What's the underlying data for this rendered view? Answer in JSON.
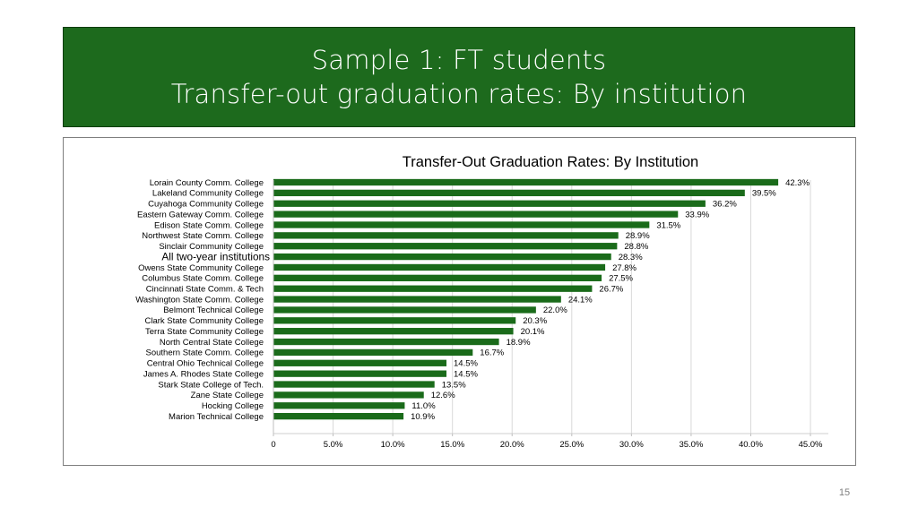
{
  "slide": {
    "title_line1": "Sample 1: FT students",
    "title_line2": "Transfer-out graduation rates: By institution",
    "page_number": "15"
  },
  "colors": {
    "title_band": "#1d6a1d",
    "bar": "#1a6b1a",
    "grid": "#d9d9d9"
  },
  "chart_data": {
    "type": "bar",
    "orientation": "horizontal",
    "title": "Transfer-Out Graduation Rates: By Institution",
    "categories": [
      "Lorain County Comm. College",
      "Lakeland Community College",
      "Cuyahoga Community College",
      "Eastern Gateway Comm. College",
      "Edison State Comm. College",
      "Northwest State Comm. College",
      "Sinclair Community College",
      "All two-year institutions",
      "Owens State Community College",
      "Columbus State Comm. College",
      "Cincinnati State Comm. & Tech",
      "Washington State Comm. College",
      "Belmont Technical College",
      "Clark State Community College",
      "Terra State Community College",
      "North Central State College",
      "Southern State Comm. College",
      "Central Ohio Technical College",
      "James A. Rhodes State College",
      "Stark State College of Tech.",
      "Zane State College",
      "Hocking College",
      "Marion Technical College"
    ],
    "values": [
      42.3,
      39.5,
      36.2,
      33.9,
      31.5,
      28.9,
      28.8,
      28.3,
      27.8,
      27.5,
      26.7,
      24.1,
      22.0,
      20.3,
      20.1,
      18.9,
      16.7,
      14.5,
      14.5,
      13.5,
      12.6,
      11.0,
      10.9
    ],
    "value_labels": [
      "42.3%",
      "39.5%",
      "36.2%",
      "33.9%",
      "31.5%",
      "28.9%",
      "28.8%",
      "28.3%",
      "27.8%",
      "27.5%",
      "26.7%",
      "24.1%",
      "22.0%",
      "20.3%",
      "20.1%",
      "18.9%",
      "16.7%",
      "14.5%",
      "14.5%",
      "13.5%",
      "12.6%",
      "11.0%",
      "10.9%"
    ],
    "highlight_category": "All two-year institutions",
    "xlim": [
      0,
      46.5
    ],
    "xticks": [
      0,
      5,
      10,
      15,
      20,
      25,
      30,
      35,
      40,
      45
    ],
    "xtick_labels": [
      "0",
      "5.0%",
      "10.0%",
      "15.0%",
      "20.0%",
      "25.0%",
      "30.0%",
      "35.0%",
      "40.0%",
      "45.0%"
    ],
    "grid": true,
    "legend": false
  }
}
